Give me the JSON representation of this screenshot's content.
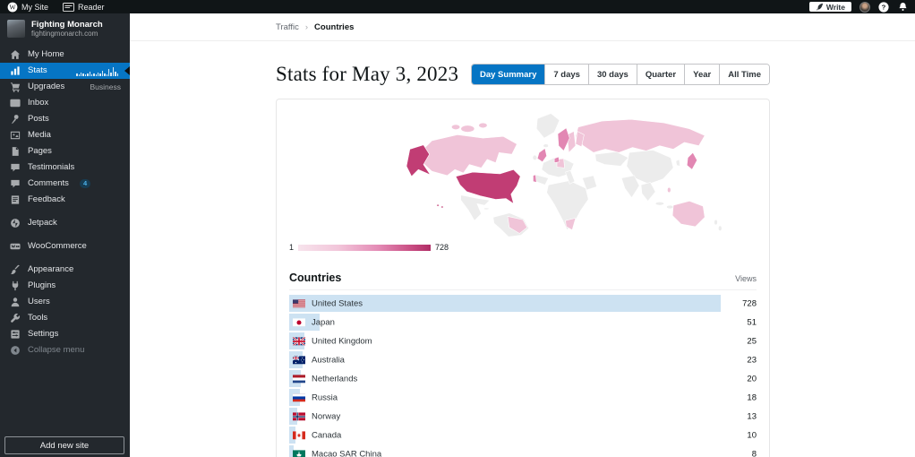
{
  "topbar": {
    "my_site_label": "My Site",
    "reader_label": "Reader",
    "write_label": "Write"
  },
  "sidebar": {
    "site": {
      "name": "Fighting Monarch",
      "domain": "fightingmonarch.com"
    },
    "items": [
      {
        "id": "my-home",
        "label": "My Home",
        "icon": "home"
      },
      {
        "id": "stats",
        "label": "Stats",
        "icon": "stats",
        "selected": true
      },
      {
        "id": "upgrades",
        "label": "Upgrades",
        "icon": "cart",
        "meta": "Business"
      },
      {
        "id": "inbox",
        "label": "Inbox",
        "icon": "mail"
      },
      {
        "id": "posts",
        "label": "Posts",
        "icon": "pin"
      },
      {
        "id": "media",
        "label": "Media",
        "icon": "media"
      },
      {
        "id": "pages",
        "label": "Pages",
        "icon": "page"
      },
      {
        "id": "testimonials",
        "label": "Testimonials",
        "icon": "bubble"
      },
      {
        "id": "comments",
        "label": "Comments",
        "icon": "bubble",
        "badge": "4"
      },
      {
        "id": "feedback",
        "label": "Feedback",
        "icon": "feedback"
      },
      {
        "id": "jetpack",
        "label": "Jetpack",
        "icon": "jetpack",
        "gap": true
      },
      {
        "id": "woocommerce",
        "label": "WooCommerce",
        "icon": "woo",
        "gap": true
      },
      {
        "id": "appearance",
        "label": "Appearance",
        "icon": "brush",
        "gap": true
      },
      {
        "id": "plugins",
        "label": "Plugins",
        "icon": "plug"
      },
      {
        "id": "users",
        "label": "Users",
        "icon": "user"
      },
      {
        "id": "tools",
        "label": "Tools",
        "icon": "wrench"
      },
      {
        "id": "settings",
        "label": "Settings",
        "icon": "settings"
      },
      {
        "id": "collapse-menu",
        "label": "Collapse menu",
        "icon": "collapse",
        "muted": true
      }
    ],
    "add_new_site_label": "Add new site"
  },
  "breadcrumb": {
    "items": [
      "Traffic",
      "Countries"
    ]
  },
  "page": {
    "title": "Stats for May 3, 2023"
  },
  "period_tabs": [
    {
      "label": "Day Summary",
      "selected": true
    },
    {
      "label": "7 days"
    },
    {
      "label": "30 days"
    },
    {
      "label": "Quarter"
    },
    {
      "label": "Year"
    },
    {
      "label": "All Time"
    }
  ],
  "map": {
    "legend_min": "1",
    "legend_max": "728",
    "colors": {
      "none": "#ececec",
      "low": "#f0c4d8",
      "mid": "#e287b3",
      "high": "#c13d74"
    }
  },
  "countries_table": {
    "title": "Countries",
    "views_label": "Views",
    "max_views": 728,
    "rows": [
      {
        "country": "United States",
        "flag": "us",
        "views": 728,
        "highlight": true
      },
      {
        "country": "Japan",
        "flag": "jp",
        "views": 51
      },
      {
        "country": "United Kingdom",
        "flag": "gb",
        "views": 25
      },
      {
        "country": "Australia",
        "flag": "au",
        "views": 23
      },
      {
        "country": "Netherlands",
        "flag": "nl",
        "views": 20
      },
      {
        "country": "Russia",
        "flag": "ru",
        "views": 18
      },
      {
        "country": "Norway",
        "flag": "no",
        "views": 13
      },
      {
        "country": "Canada",
        "flag": "ca",
        "views": 10
      },
      {
        "country": "Macao SAR China",
        "flag": "mo",
        "views": 8
      }
    ]
  }
}
